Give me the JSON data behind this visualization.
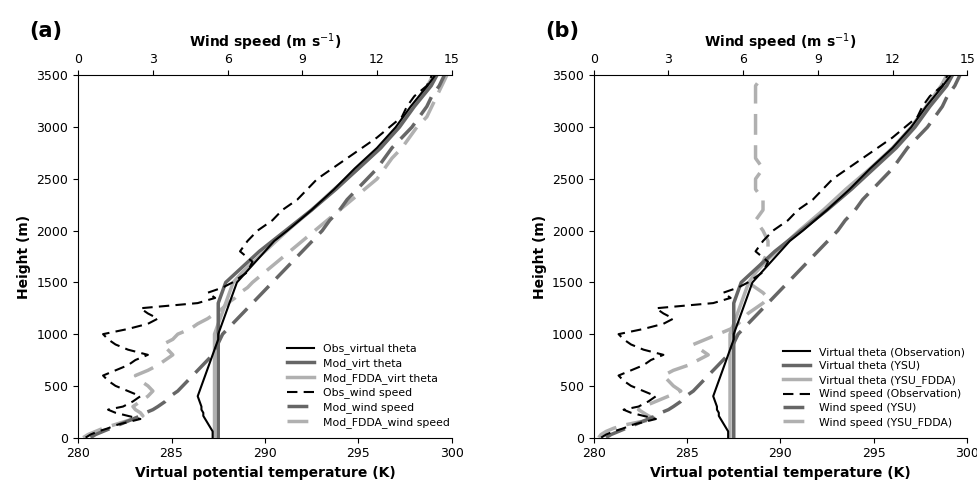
{
  "panel_a_label": "(a)",
  "panel_b_label": "(b)",
  "xlabel": "Virtual potential temperature (K)",
  "ylabel": "Height (m)",
  "top_xlabel": "Wind speed (m s⁻¹)",
  "theta_xlim": [
    280,
    300
  ],
  "wind_xlim": [
    0,
    15
  ],
  "ylim": [
    0,
    3500
  ],
  "theta_xticks": [
    280,
    285,
    290,
    295,
    300
  ],
  "wind_xticks": [
    0,
    3,
    6,
    9,
    12,
    15
  ],
  "yticks": [
    0,
    500,
    1000,
    1500,
    2000,
    2500,
    3000,
    3500
  ],
  "legend_a": [
    "Obs_virtual theta",
    "Mod_virt theta",
    "Mod_FDDA_virt theta",
    "Obs_wind speed",
    "Mod_wind speed",
    "Mod_FDDA_wind speed"
  ],
  "legend_b": [
    "Virtual theta (Observation)",
    "Virtual theta (YSU)",
    "Virtual theta (YSU_FDDA)",
    "Wind speed (Observation)",
    "Wind speed (YSU)",
    "Wind speed (YSU_FDDA)"
  ],
  "height_theta": [
    0,
    30,
    60,
    90,
    120,
    150,
    180,
    210,
    240,
    270,
    300,
    350,
    400,
    450,
    500,
    550,
    600,
    650,
    700,
    750,
    800,
    850,
    900,
    950,
    1000,
    1050,
    1100,
    1150,
    1200,
    1250,
    1300,
    1350,
    1400,
    1450,
    1500,
    1600,
    1700,
    1800,
    1900,
    2000,
    2200,
    2400,
    2600,
    2800,
    3000,
    3200,
    3400,
    3500
  ],
  "obs_theta_a": [
    287.2,
    287.2,
    287.2,
    287.1,
    287.0,
    286.9,
    286.8,
    286.7,
    286.7,
    286.6,
    286.6,
    286.5,
    286.4,
    286.5,
    286.6,
    286.7,
    286.8,
    286.9,
    287.0,
    287.1,
    287.2,
    287.3,
    287.4,
    287.5,
    287.5,
    287.6,
    287.7,
    287.8,
    287.9,
    288.0,
    288.1,
    288.2,
    288.3,
    288.4,
    288.5,
    289.0,
    289.5,
    290.0,
    290.5,
    291.2,
    292.5,
    293.7,
    294.8,
    296.0,
    297.0,
    297.8,
    298.7,
    299.1
  ],
  "mod_theta_a": [
    287.5,
    287.5,
    287.5,
    287.5,
    287.5,
    287.5,
    287.5,
    287.5,
    287.5,
    287.5,
    287.5,
    287.5,
    287.5,
    287.5,
    287.5,
    287.5,
    287.5,
    287.5,
    287.5,
    287.5,
    287.5,
    287.5,
    287.5,
    287.5,
    287.5,
    287.5,
    287.5,
    287.5,
    287.5,
    287.5,
    287.5,
    287.6,
    287.7,
    287.8,
    287.9,
    288.5,
    289.1,
    289.7,
    290.4,
    291.1,
    292.5,
    293.8,
    295.0,
    296.2,
    297.2,
    298.0,
    298.9,
    299.2
  ],
  "mod_fdda_theta_a": [
    287.3,
    287.3,
    287.3,
    287.3,
    287.3,
    287.3,
    287.3,
    287.3,
    287.3,
    287.3,
    287.3,
    287.3,
    287.3,
    287.3,
    287.3,
    287.3,
    287.3,
    287.3,
    287.3,
    287.3,
    287.3,
    287.3,
    287.3,
    287.3,
    287.3,
    287.4,
    287.5,
    287.6,
    287.7,
    287.8,
    287.9,
    288.0,
    288.1,
    288.2,
    288.3,
    288.8,
    289.4,
    290.0,
    290.6,
    291.2,
    292.5,
    293.7,
    295.0,
    296.2,
    297.1,
    297.9,
    298.7,
    299.0
  ],
  "height_wind": [
    0,
    30,
    60,
    90,
    120,
    150,
    180,
    210,
    240,
    270,
    300,
    350,
    400,
    450,
    500,
    550,
    600,
    650,
    700,
    750,
    800,
    850,
    900,
    950,
    1000,
    1050,
    1100,
    1150,
    1200,
    1250,
    1300,
    1350,
    1400,
    1450,
    1500,
    1600,
    1700,
    1800,
    1900,
    2000,
    2100,
    2200,
    2300,
    2400,
    2500,
    2600,
    2700,
    2800,
    2900,
    3000,
    3100,
    3200,
    3300,
    3400,
    3500
  ],
  "obs_wind_a": [
    0.3,
    0.5,
    0.8,
    1.2,
    1.5,
    2.0,
    2.5,
    2.0,
    1.5,
    1.2,
    1.8,
    2.2,
    2.5,
    2.0,
    1.5,
    1.2,
    1.0,
    1.5,
    2.0,
    2.3,
    2.8,
    2.0,
    1.5,
    1.2,
    1.0,
    2.0,
    2.8,
    3.2,
    2.8,
    2.5,
    4.8,
    5.5,
    5.2,
    5.8,
    6.2,
    6.8,
    7.0,
    6.5,
    6.8,
    7.2,
    7.8,
    8.2,
    8.8,
    9.2,
    9.6,
    10.2,
    10.8,
    11.4,
    12.0,
    12.5,
    13.0,
    13.2,
    13.5,
    14.0,
    14.2
  ],
  "mod_wind_a": [
    0.5,
    0.7,
    1.0,
    1.3,
    1.6,
    1.9,
    2.2,
    2.5,
    2.7,
    3.0,
    3.2,
    3.5,
    3.7,
    4.0,
    4.2,
    4.4,
    4.6,
    4.8,
    5.0,
    5.2,
    5.4,
    5.5,
    5.6,
    5.7,
    5.8,
    6.0,
    6.2,
    6.4,
    6.6,
    6.8,
    7.0,
    7.2,
    7.4,
    7.6,
    7.8,
    8.2,
    8.6,
    9.0,
    9.4,
    9.8,
    10.1,
    10.5,
    10.8,
    11.2,
    11.6,
    12.0,
    12.3,
    12.6,
    13.0,
    13.4,
    13.7,
    14.0,
    14.2,
    14.5,
    14.7
  ],
  "mod_fdda_wind_a": [
    0.2,
    0.4,
    0.7,
    1.0,
    1.4,
    1.8,
    2.2,
    2.6,
    2.5,
    2.3,
    2.2,
    2.5,
    2.8,
    3.0,
    2.8,
    2.5,
    2.3,
    2.8,
    3.2,
    3.5,
    3.8,
    3.6,
    3.4,
    3.8,
    4.0,
    4.5,
    4.8,
    5.2,
    5.5,
    5.8,
    6.0,
    6.3,
    6.5,
    6.8,
    7.0,
    7.5,
    8.0,
    8.5,
    9.0,
    9.5,
    10.0,
    10.5,
    11.0,
    11.5,
    12.0,
    12.3,
    12.6,
    13.0,
    13.3,
    13.6,
    14.0,
    14.2,
    14.4,
    14.6,
    14.8
  ],
  "obs_theta_b": [
    287.2,
    287.2,
    287.2,
    287.1,
    287.0,
    286.9,
    286.8,
    286.7,
    286.7,
    286.6,
    286.6,
    286.5,
    286.4,
    286.5,
    286.6,
    286.7,
    286.8,
    286.9,
    287.0,
    287.1,
    287.2,
    287.3,
    287.4,
    287.5,
    287.5,
    287.6,
    287.7,
    287.8,
    287.9,
    288.0,
    288.1,
    288.2,
    288.3,
    288.4,
    288.5,
    289.0,
    289.5,
    290.0,
    290.5,
    291.2,
    292.5,
    293.7,
    294.8,
    296.0,
    297.0,
    297.8,
    298.7,
    299.1
  ],
  "mod_theta_b": [
    287.5,
    287.5,
    287.5,
    287.5,
    287.5,
    287.5,
    287.5,
    287.5,
    287.5,
    287.5,
    287.5,
    287.5,
    287.5,
    287.5,
    287.5,
    287.5,
    287.5,
    287.5,
    287.5,
    287.5,
    287.5,
    287.5,
    287.5,
    287.5,
    287.5,
    287.5,
    287.5,
    287.5,
    287.5,
    287.5,
    287.5,
    287.6,
    287.7,
    287.8,
    287.9,
    288.5,
    289.1,
    289.7,
    290.4,
    291.1,
    292.5,
    293.8,
    295.0,
    296.2,
    297.2,
    298.0,
    298.9,
    299.2
  ],
  "mod_fdda_theta_b": [
    287.3,
    287.3,
    287.3,
    287.3,
    287.3,
    287.3,
    287.3,
    287.3,
    287.3,
    287.3,
    287.3,
    287.3,
    287.3,
    287.3,
    287.3,
    287.3,
    287.3,
    287.3,
    287.3,
    287.3,
    287.3,
    287.3,
    287.3,
    287.3,
    287.3,
    287.4,
    287.5,
    287.6,
    287.7,
    287.8,
    287.9,
    288.0,
    288.1,
    288.2,
    288.3,
    288.7,
    289.2,
    289.8,
    290.4,
    291.0,
    292.3,
    293.5,
    294.8,
    296.0,
    297.0,
    297.8,
    298.6,
    298.9
  ],
  "obs_wind_b": [
    0.3,
    0.5,
    0.8,
    1.2,
    1.5,
    2.0,
    2.5,
    2.0,
    1.5,
    1.2,
    1.8,
    2.2,
    2.5,
    2.0,
    1.5,
    1.2,
    1.0,
    1.5,
    2.0,
    2.3,
    2.8,
    2.0,
    1.5,
    1.2,
    1.0,
    2.0,
    2.8,
    3.2,
    2.8,
    2.5,
    4.8,
    5.5,
    5.2,
    5.8,
    6.2,
    6.8,
    7.0,
    6.5,
    6.8,
    7.2,
    7.8,
    8.2,
    8.8,
    9.2,
    9.6,
    10.2,
    10.8,
    11.4,
    12.0,
    12.5,
    13.0,
    13.2,
    13.5,
    14.0,
    14.2
  ],
  "mod_wind_b": [
    0.5,
    0.7,
    1.0,
    1.3,
    1.6,
    1.9,
    2.2,
    2.5,
    2.7,
    3.0,
    3.2,
    3.5,
    3.7,
    4.0,
    4.2,
    4.4,
    4.6,
    4.8,
    5.0,
    5.2,
    5.4,
    5.5,
    5.6,
    5.7,
    5.8,
    6.0,
    6.2,
    6.4,
    6.6,
    6.8,
    7.0,
    7.2,
    7.4,
    7.6,
    7.8,
    8.2,
    8.6,
    9.0,
    9.4,
    9.8,
    10.1,
    10.5,
    10.8,
    11.2,
    11.6,
    12.0,
    12.3,
    12.6,
    13.0,
    13.4,
    13.7,
    14.0,
    14.2,
    14.5,
    14.7
  ],
  "mod_fdda_wind_b": [
    0.2,
    0.3,
    0.5,
    0.8,
    1.2,
    1.8,
    2.5,
    2.2,
    2.0,
    1.8,
    2.0,
    2.5,
    3.0,
    3.5,
    3.2,
    3.0,
    2.8,
    3.2,
    3.8,
    4.2,
    4.6,
    4.3,
    4.0,
    4.5,
    5.0,
    5.5,
    5.8,
    6.0,
    6.2,
    6.5,
    6.8,
    7.0,
    6.8,
    6.5,
    6.2,
    6.5,
    6.8,
    7.0,
    7.0,
    6.8,
    6.5,
    6.8,
    6.8,
    6.5,
    6.5,
    6.8,
    6.5,
    6.5,
    6.5,
    6.5,
    6.5,
    6.5,
    6.5,
    6.5,
    6.8
  ]
}
